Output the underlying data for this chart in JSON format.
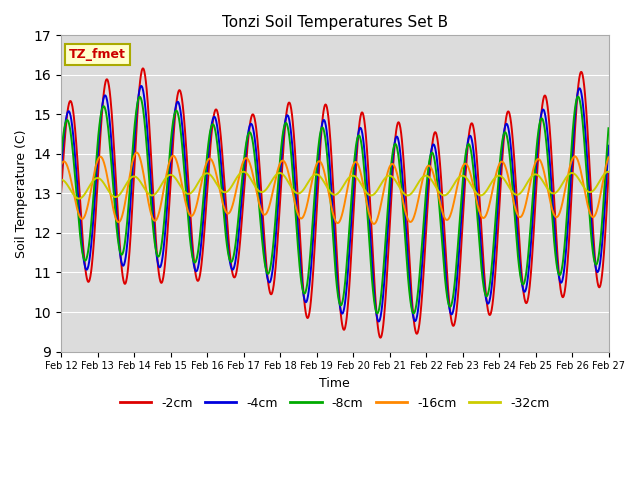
{
  "title": "Tonzi Soil Temperatures Set B",
  "xlabel": "Time",
  "ylabel": "Soil Temperature (C)",
  "ylim": [
    9.0,
    17.0
  ],
  "yticks": [
    9.0,
    10.0,
    11.0,
    12.0,
    13.0,
    14.0,
    15.0,
    16.0,
    17.0
  ],
  "bg_color": "#dcdcdc",
  "fig_bg": "#ffffff",
  "legend_label": "TZ_fmet",
  "legend_box_facecolor": "#ffffcc",
  "legend_box_edgecolor": "#aaaa00",
  "xtick_labels": [
    "Feb 12",
    "Feb 13",
    "Feb 14",
    "Feb 15",
    "Feb 16",
    "Feb 17",
    "Feb 18",
    "Feb 19",
    "Feb 20",
    "Feb 21",
    "Feb 22",
    "Feb 23",
    "Feb 24",
    "Feb 25",
    "Feb 26",
    "Feb 27"
  ],
  "series_colors": [
    "#dd0000",
    "#0000dd",
    "#00aa00",
    "#ff8800",
    "#cccc00"
  ],
  "series_labels": [
    "-2cm",
    "-4cm",
    "-8cm",
    "-16cm",
    "-32cm"
  ],
  "series_lw": [
    1.4,
    1.4,
    1.4,
    1.4,
    1.4
  ],
  "grid_color": "#ffffff"
}
